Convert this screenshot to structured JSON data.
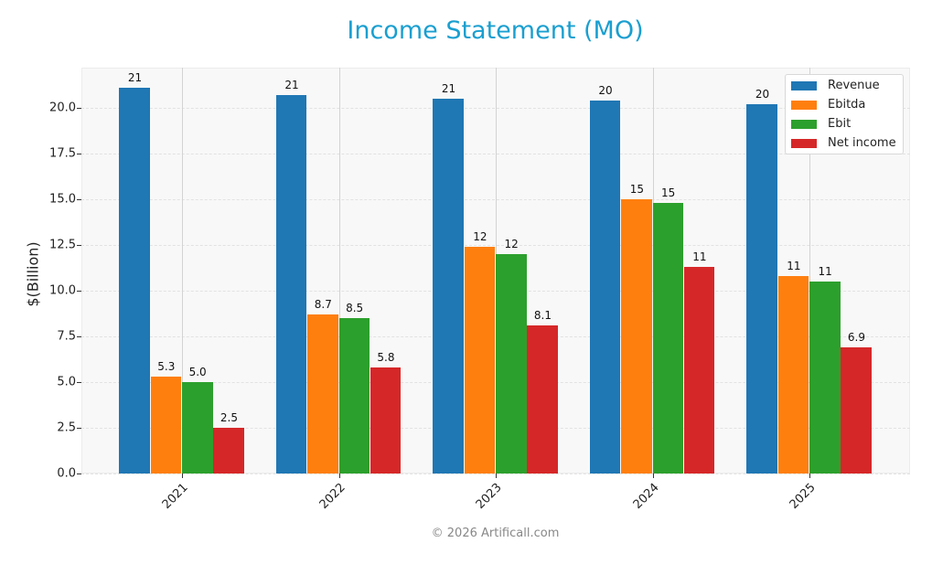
{
  "chart_data": {
    "type": "bar",
    "title": "Income Statement (MO)",
    "xlabel": "",
    "ylabel": "$(Billion)",
    "ylim": [
      0,
      22.2
    ],
    "yticks": [
      "0.0",
      "2.5",
      "5.0",
      "7.5",
      "10.0",
      "12.5",
      "15.0",
      "17.5",
      "20.0"
    ],
    "categories": [
      "2021",
      "2022",
      "2023",
      "2024",
      "2025"
    ],
    "series": [
      {
        "name": "Revenue",
        "color": "#1f77b4",
        "values": [
          21.1,
          20.7,
          20.5,
          20.4,
          20.2
        ],
        "labels": [
          "21",
          "21",
          "21",
          "20",
          "20"
        ]
      },
      {
        "name": "Ebitda",
        "color": "#ff7f0e",
        "values": [
          5.3,
          8.7,
          12.4,
          15.0,
          10.8
        ],
        "labels": [
          "5.3",
          "8.7",
          "12",
          "15",
          "11"
        ]
      },
      {
        "name": "Ebit",
        "color": "#2ca02c",
        "values": [
          5.0,
          8.5,
          12.0,
          14.8,
          10.5
        ],
        "labels": [
          "5.0",
          "8.5",
          "12",
          "15",
          "11"
        ]
      },
      {
        "name": "Net income",
        "color": "#d62728",
        "values": [
          2.5,
          5.8,
          8.1,
          11.3,
          6.9
        ],
        "labels": [
          "2.5",
          "5.8",
          "8.1",
          "11",
          "6.9"
        ]
      }
    ],
    "legend_position": "upper right",
    "grid": true
  },
  "footer": "© 2026 Artificall.com"
}
